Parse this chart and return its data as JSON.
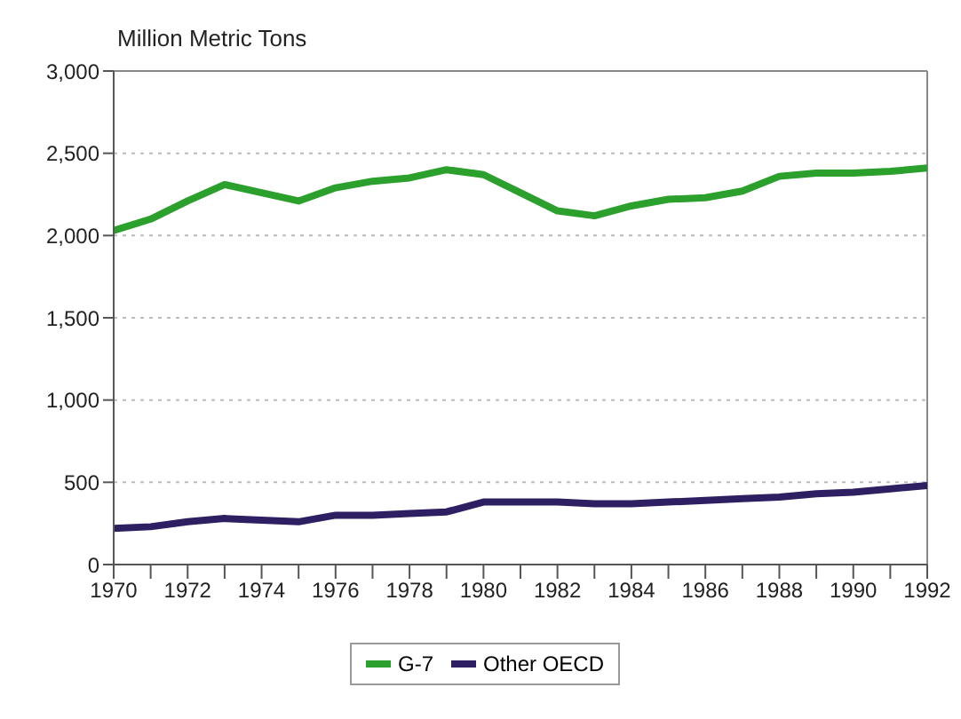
{
  "chart_data": {
    "type": "line",
    "ylabel": "Million Metric Tons",
    "x": [
      1970,
      1971,
      1972,
      1973,
      1974,
      1975,
      1976,
      1977,
      1978,
      1979,
      1980,
      1981,
      1982,
      1983,
      1984,
      1985,
      1986,
      1987,
      1988,
      1989,
      1990,
      1991,
      1992
    ],
    "series": [
      {
        "name": "G-7",
        "color": "#2ca02c",
        "values": [
          2030,
          2100,
          2210,
          2310,
          2260,
          2210,
          2290,
          2330,
          2350,
          2400,
          2370,
          2260,
          2150,
          2120,
          2180,
          2220,
          2230,
          2270,
          2360,
          2380,
          2380,
          2390,
          2410
        ]
      },
      {
        "name": "Other OECD",
        "color": "#2e1f63",
        "values": [
          220,
          230,
          260,
          280,
          270,
          260,
          300,
          300,
          310,
          320,
          380,
          380,
          380,
          370,
          370,
          380,
          390,
          400,
          410,
          430,
          440,
          460,
          480
        ]
      }
    ],
    "xlim": [
      1970,
      1992
    ],
    "xticks": [
      1970,
      {
        "value": 1971,
        "label": null
      },
      1972,
      {
        "value": 1973,
        "label": null
      },
      1974,
      {
        "value": 1975,
        "label": null
      },
      1976,
      {
        "value": 1977,
        "label": null
      },
      1978,
      {
        "value": 1979,
        "label": null
      },
      1980,
      {
        "value": 1981,
        "label": null
      },
      1982,
      {
        "value": 1983,
        "label": null
      },
      1984,
      {
        "value": 1985,
        "label": null
      },
      1986,
      {
        "value": 1987,
        "label": null
      },
      1988,
      {
        "value": 1989,
        "label": null
      },
      1990,
      {
        "value": 1991,
        "label": null
      },
      1992
    ],
    "ylim": [
      0,
      3000
    ],
    "yticks": [
      {
        "value": 0,
        "label": "0"
      },
      {
        "value": 500,
        "label": "500"
      },
      {
        "value": 1000,
        "label": "1,000"
      },
      {
        "value": 1500,
        "label": "1,500"
      },
      {
        "value": 2000,
        "label": "2,000"
      },
      {
        "value": 2500,
        "label": "2,500"
      },
      {
        "value": 3000,
        "label": "3,000"
      }
    ],
    "grid": "y",
    "legend": "bottom",
    "marker": "none",
    "line_style": "solid"
  }
}
